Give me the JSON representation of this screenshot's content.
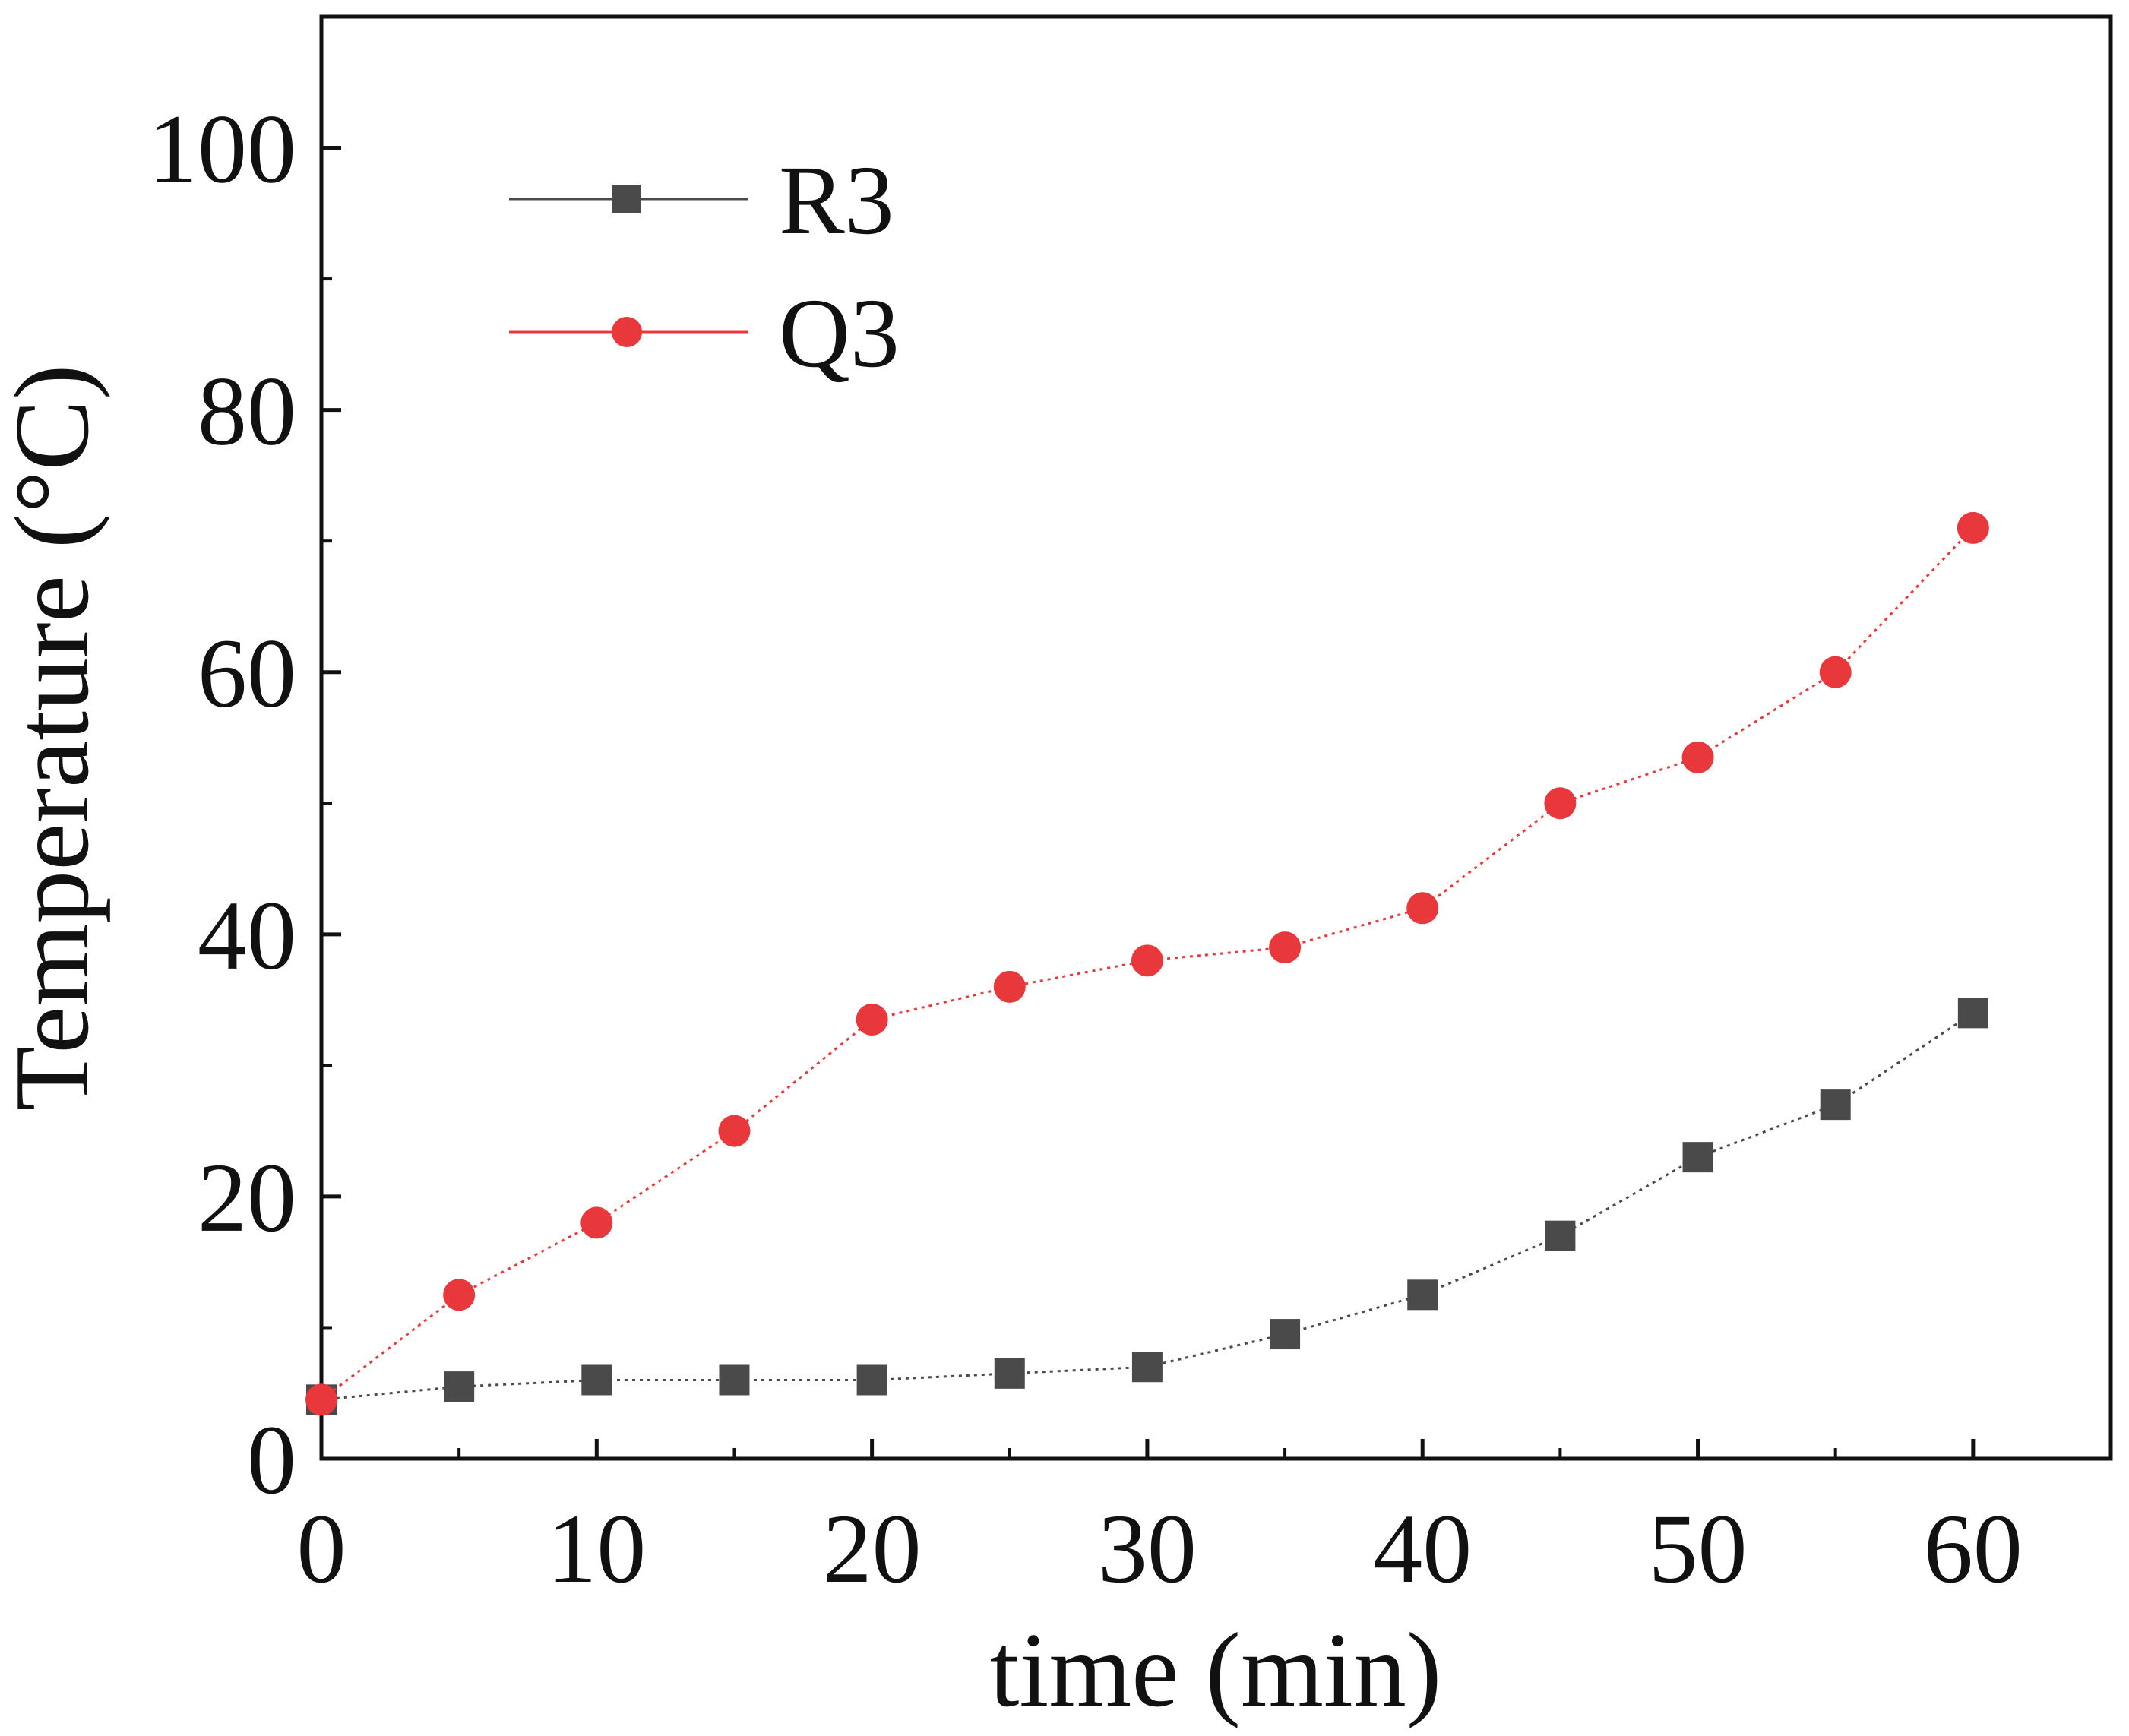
{
  "chart_data": {
    "type": "line",
    "title": "",
    "xlabel": "time (min)",
    "ylabel": "Temperature (°C)",
    "xlim": [
      0,
      65
    ],
    "ylim": [
      0,
      110
    ],
    "xticks": [
      0,
      10,
      20,
      30,
      40,
      50,
      60
    ],
    "yticks": [
      0,
      20,
      40,
      60,
      80,
      100
    ],
    "minor_xticks": [
      5,
      15,
      25,
      35,
      45,
      55
    ],
    "minor_yticks": [
      10,
      30,
      50,
      70,
      90
    ],
    "grid": false,
    "legend_position": "top-left",
    "series": [
      {
        "name": "R3",
        "color": "#4a4a4a",
        "marker": "square",
        "line_style": "dotted",
        "x": [
          0,
          5,
          10,
          15,
          20,
          25,
          30,
          35,
          40,
          45,
          50,
          55,
          60
        ],
        "values": [
          4.5,
          5.5,
          6,
          6,
          6,
          6.5,
          7,
          9.5,
          12.5,
          17,
          23,
          27,
          34
        ]
      },
      {
        "name": "Q3",
        "color": "#e8383b",
        "marker": "circle",
        "line_style": "dotted",
        "x": [
          0,
          5,
          10,
          15,
          20,
          25,
          30,
          35,
          40,
          45,
          50,
          55,
          60
        ],
        "values": [
          4.5,
          12.5,
          18,
          25,
          33.5,
          36,
          38,
          39,
          42,
          50,
          53.5,
          60,
          71
        ]
      }
    ]
  }
}
